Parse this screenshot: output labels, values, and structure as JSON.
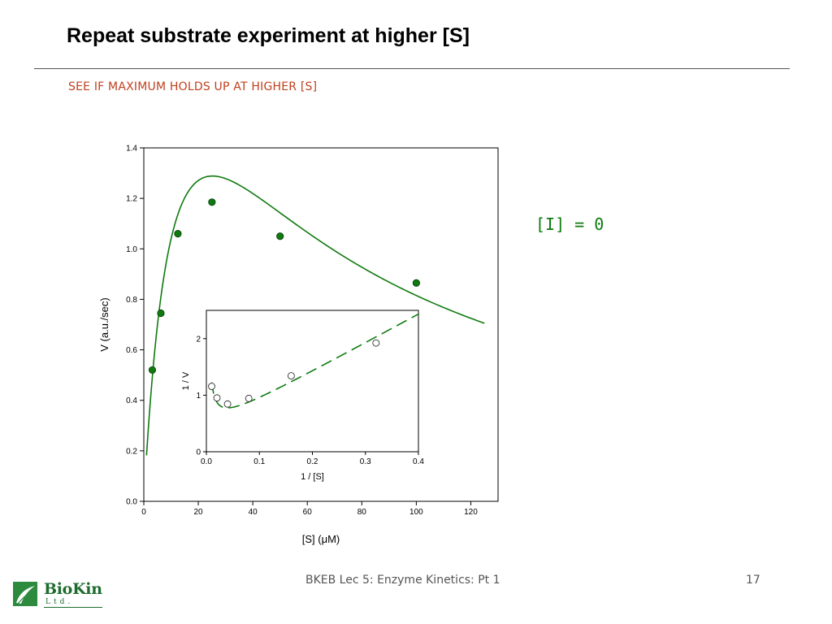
{
  "slide": {
    "title": "Repeat substrate experiment at higher [S]",
    "subtitle": "SEE IF MAXIMUM HOLDS UP AT HIGHER [S]",
    "condition_label": "[I] = 0"
  },
  "footer": {
    "text": "BKEB Lec 5: Enzyme Kinetics: Pt 1",
    "page_number": "17"
  },
  "logo": {
    "name_part1": "Bio",
    "name_part2": "Kin",
    "suffix": "Ltd."
  },
  "colors": {
    "accent_green": "#0f7a0f",
    "subtitle_red": "#c0401e"
  },
  "chart_data": [
    {
      "id": "main",
      "type": "scatter",
      "xlabel": "[S] (μM)",
      "ylabel": "V (a.u./sec)",
      "xlim": [
        0,
        130
      ],
      "ylim": [
        0,
        1.4
      ],
      "xticks": [
        0,
        20,
        40,
        60,
        80,
        100,
        120
      ],
      "yticks": [
        0.0,
        0.2,
        0.4,
        0.6,
        0.8,
        1.0,
        1.2,
        1.4
      ],
      "ytick_labels": [
        "0.0",
        "0.2",
        "0.4",
        "0.6",
        "0.8",
        "1.0",
        "1.2",
        "1.4"
      ],
      "points": {
        "x": [
          3.125,
          6.25,
          12.5,
          25,
          50,
          100
        ],
        "y": [
          0.52,
          0.745,
          1.06,
          1.185,
          1.05,
          0.865
        ]
      },
      "fit_curve": {
        "model": "substrate inhibition",
        "x_range": [
          1,
          125
        ],
        "Vmax": 2.7,
        "Km": 13.8,
        "Ki": 46
      },
      "marker": "filled circle",
      "grid": false
    },
    {
      "id": "inset",
      "type": "scatter",
      "xlabel": "1 / [S]",
      "ylabel": "1 / V",
      "xlim": [
        0,
        0.4
      ],
      "ylim": [
        0,
        2.5
      ],
      "xticks": [
        0.0,
        0.1,
        0.2,
        0.3,
        0.4
      ],
      "xtick_labels": [
        "0.0",
        "0.1",
        "0.2",
        "0.3",
        "0.4"
      ],
      "yticks": [
        0,
        1,
        2
      ],
      "ytick_labels": [
        "0",
        "1",
        "2"
      ],
      "points": {
        "x": [
          0.01,
          0.02,
          0.04,
          0.08,
          0.16,
          0.32
        ],
        "y": [
          1.156,
          0.952,
          0.844,
          0.943,
          1.342,
          1.923
        ]
      },
      "fit_curve": {
        "style": "dashed",
        "x_range": [
          0.01,
          0.4
        ]
      },
      "marker": "open circle",
      "grid": false
    }
  ]
}
